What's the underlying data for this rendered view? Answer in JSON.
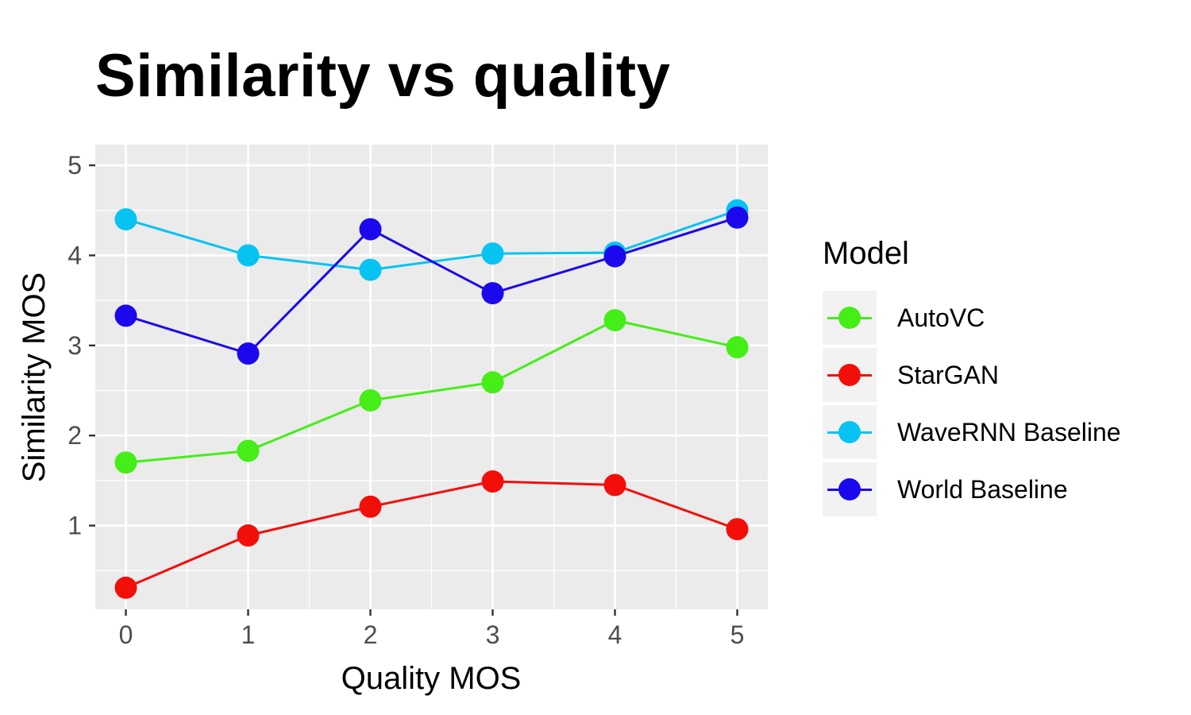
{
  "chart_data": {
    "type": "line",
    "title": "Similarity vs quality",
    "xlabel": "Quality MOS",
    "ylabel": "Similarity MOS",
    "x": [
      0,
      1,
      2,
      3,
      4,
      5
    ],
    "x_ticks": [
      "0",
      "1",
      "2",
      "3",
      "4",
      "5"
    ],
    "y_ticks": [
      "1",
      "2",
      "3",
      "4",
      "5"
    ],
    "xlim": [
      -0.25,
      5.25
    ],
    "ylim": [
      0.07,
      5.23
    ],
    "grid": true,
    "legend_title": "Model",
    "legend_position": "right",
    "series": [
      {
        "name": "AutoVC",
        "color": "#44ee16",
        "values": [
          1.7,
          1.83,
          2.39,
          2.59,
          3.28,
          2.98
        ]
      },
      {
        "name": "StarGAN",
        "color": "#f20f0a",
        "values": [
          0.31,
          0.89,
          1.21,
          1.49,
          1.45,
          0.96
        ]
      },
      {
        "name": "WaveRNN Baseline",
        "color": "#06c3f2",
        "values": [
          4.4,
          4.0,
          3.84,
          4.02,
          4.03,
          4.5
        ]
      },
      {
        "name": "World Baseline",
        "color": "#1b08ec",
        "values": [
          3.33,
          2.91,
          4.29,
          3.58,
          3.99,
          4.42
        ]
      }
    ]
  }
}
